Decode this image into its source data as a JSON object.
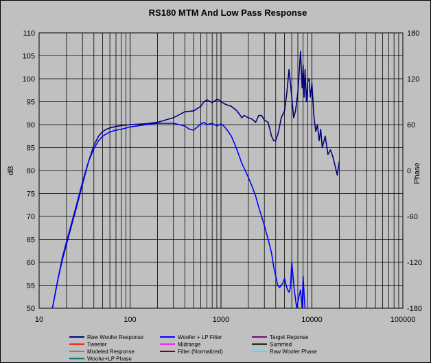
{
  "chart_data": {
    "type": "line",
    "title": "RS180 MTM  And Low Pass Response",
    "xlabel": "",
    "ylabel": "dB",
    "y2label": "Phase",
    "x_scale": "log",
    "xlim": [
      10,
      100000
    ],
    "ylim": [
      50,
      110
    ],
    "y2lim": [
      -180,
      180
    ],
    "x_ticks": [
      "10",
      "100",
      "1000",
      "10000",
      "100000"
    ],
    "y_ticks": [
      "50",
      "55",
      "60",
      "65",
      "70",
      "75",
      "80",
      "85",
      "90",
      "95",
      "100",
      "105",
      "110"
    ],
    "y2_ticks": [
      "-180",
      "-120",
      "-60",
      "0",
      "60",
      "120",
      "180"
    ],
    "grid": true,
    "legend_position": "bottom",
    "legend": [
      {
        "name": "Raw Woofer Response",
        "color": "#000080"
      },
      {
        "name": "Woofer + LP Filter",
        "color": "#0000ff"
      },
      {
        "name": "Target Reponse",
        "color": "#800080"
      },
      {
        "name": "Tweeter",
        "color": "#ff0000"
      },
      {
        "name": "Midrange",
        "color": "#ff00ff"
      },
      {
        "name": "Summed",
        "color": "#000000"
      },
      {
        "name": "Modeled Response",
        "color": "#808080"
      },
      {
        "name": "Filter (Normalized)",
        "color": "#800000"
      },
      {
        "name": "Raw Woofer Phase",
        "color": "#00ffff"
      },
      {
        "name": "Woofer+LP Phase",
        "color": "#008080"
      }
    ],
    "series": [
      {
        "name": "Raw Woofer Response",
        "color": "#000080",
        "x": [
          14,
          16,
          18,
          20,
          25,
          30,
          35,
          40,
          45,
          50,
          55,
          60,
          70,
          80,
          100,
          150,
          200,
          300,
          400,
          500,
          600,
          650,
          700,
          800,
          900,
          950,
          1000,
          1100,
          1200,
          1300,
          1500,
          1700,
          1800,
          2000,
          2200,
          2400,
          2600,
          2800,
          3000,
          3300,
          3600,
          3800,
          4000,
          4300,
          4600,
          5000,
          5300,
          5600,
          5800,
          6000,
          6300,
          6600,
          7000,
          7500,
          7800,
          8000,
          8200,
          8400,
          8700,
          9000,
          9300,
          9600,
          10000,
          10500,
          11000,
          11500,
          12000,
          12500,
          13000,
          14000,
          15000,
          16000,
          17000,
          18000,
          19000,
          20000
        ],
        "y": [
          50.0,
          56.0,
          60.5,
          64.0,
          71.0,
          77.0,
          82.0,
          85.5,
          87.5,
          88.5,
          89.0,
          89.3,
          89.6,
          89.8,
          90.0,
          90.2,
          90.5,
          91.5,
          92.8,
          93.0,
          94.0,
          95.0,
          95.4,
          94.8,
          95.5,
          95.4,
          95.0,
          94.5,
          94.2,
          94.0,
          93.0,
          91.5,
          92.0,
          91.5,
          91.2,
          90.5,
          92.0,
          92.0,
          91.0,
          90.5,
          87.5,
          86.5,
          86.5,
          88.5,
          91.5,
          93.0,
          97.0,
          102.0,
          99.0,
          96.0,
          91.5,
          93.0,
          97.0,
          106.0,
          98.0,
          103.0,
          96.0,
          102.0,
          95.0,
          99.5,
          100.0,
          96.0,
          99.0,
          92.0,
          88.5,
          90.0,
          86.5,
          89.0,
          85.0,
          87.5,
          83.5,
          84.5,
          83.0,
          81.0,
          79.0,
          82.0
        ]
      },
      {
        "name": "Woofer + LP Filter",
        "color": "#0000ff",
        "x": [
          14,
          16,
          18,
          20,
          25,
          30,
          35,
          40,
          45,
          50,
          55,
          60,
          70,
          80,
          100,
          150,
          200,
          300,
          400,
          450,
          500,
          550,
          600,
          650,
          700,
          800,
          900,
          1000,
          1100,
          1200,
          1300,
          1400,
          1500,
          1600,
          1700,
          1800,
          2000,
          2200,
          2400,
          2600,
          2800,
          3000,
          3200,
          3400,
          3600,
          3800,
          4000,
          4200,
          4400,
          4600,
          4800,
          5000,
          5200,
          5400,
          5600,
          5800,
          6000,
          6200,
          6400,
          6800,
          7200,
          7500,
          7800,
          8000,
          8200,
          8400
        ],
        "y": [
          50.0,
          56.0,
          61.0,
          64.5,
          71.5,
          77.5,
          82.0,
          84.8,
          86.5,
          87.5,
          88.0,
          88.4,
          88.8,
          89.0,
          89.5,
          90.0,
          90.3,
          90.3,
          89.7,
          89.0,
          88.8,
          89.5,
          90.2,
          90.5,
          90.0,
          90.3,
          89.7,
          90.2,
          89.5,
          88.5,
          87.5,
          86.0,
          84.5,
          83.0,
          81.5,
          80.5,
          78.5,
          76.5,
          74.5,
          72.0,
          70.0,
          68.0,
          66.0,
          64.0,
          62.0,
          59.0,
          57.0,
          55.0,
          54.5,
          55.0,
          55.5,
          56.5,
          55.0,
          54.0,
          53.5,
          54.5,
          60.0,
          57.0,
          54.0,
          50.0,
          52.5,
          54.0,
          50.0,
          57.0,
          53.0,
          50.0
        ]
      }
    ]
  }
}
